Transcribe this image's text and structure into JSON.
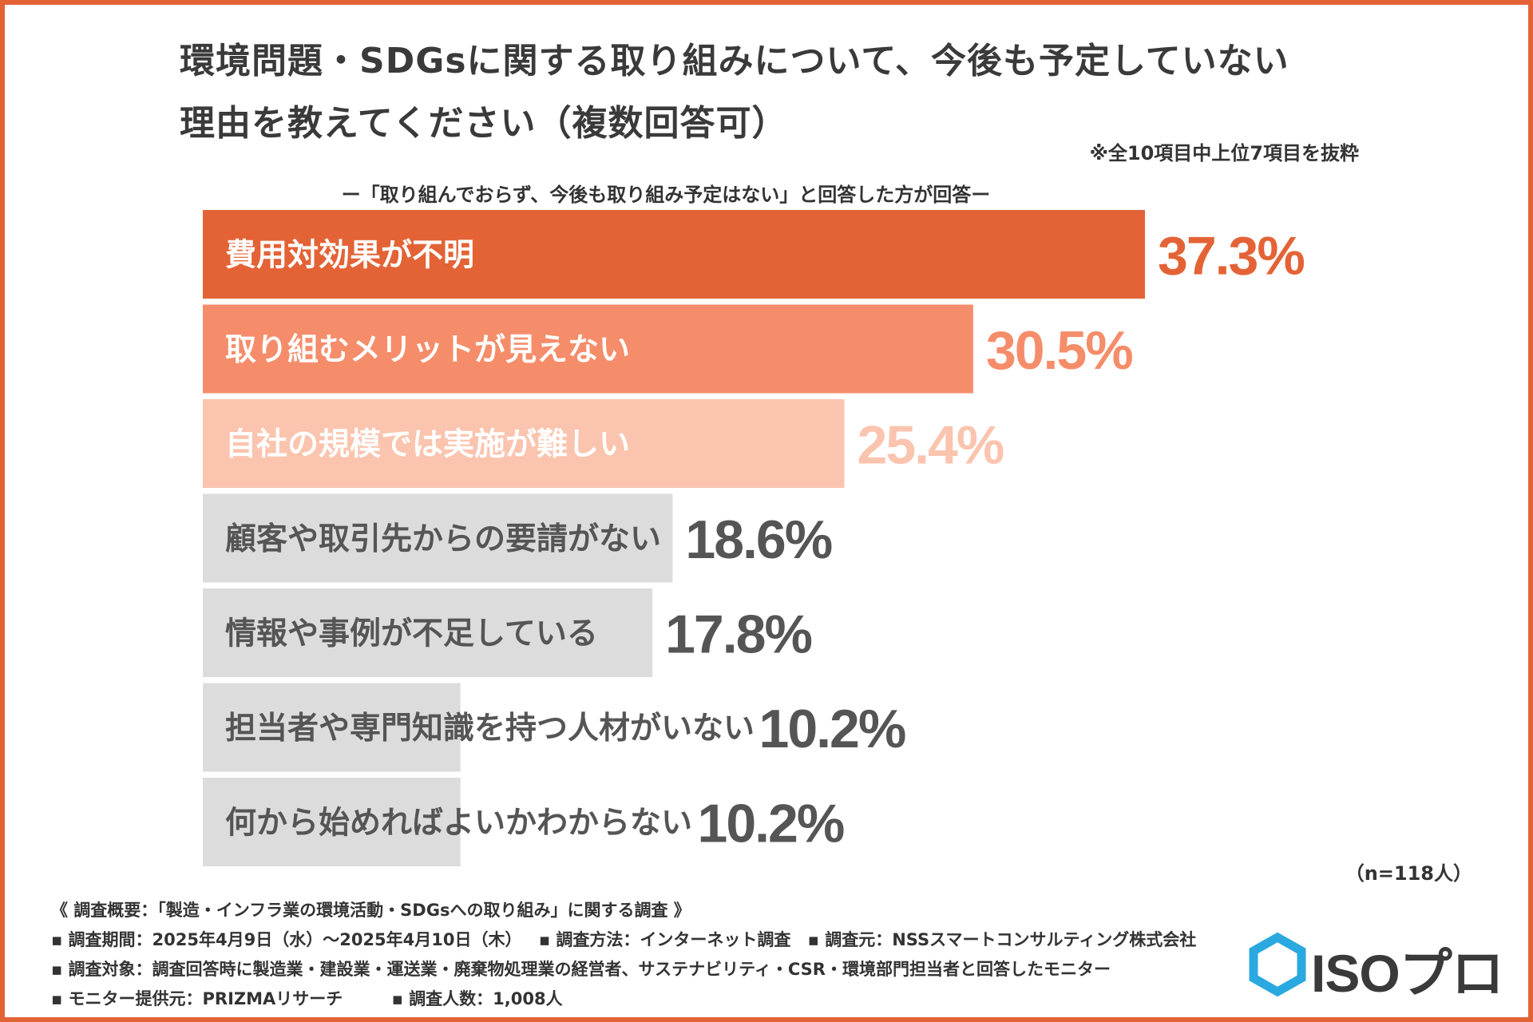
{
  "title_line1": "環境問題・SDGsに関する取り組みについて、今後も予定していない",
  "title_line2": "理由を教えてください（複数回答可）",
  "note": "※全10項目中上位7項目を抜粋",
  "subtitle": "ー「取り組んでおらず、今後も取り組み予定はない」と回答した方が回答ー",
  "n_label": "（n=118人）",
  "chart_data": {
    "type": "bar",
    "orientation": "horizontal",
    "categories": [
      "費用対効果が不明",
      "取り組むメリットが見えない",
      "自社の規模では実施が難しい",
      "顧客や取引先からの要請がない",
      "情報や事例が不足している",
      "担当者や専門知識を持つ人材がいない",
      "何から始めればよいかわからない"
    ],
    "values": [
      37.3,
      30.5,
      25.4,
      18.6,
      17.8,
      10.2,
      10.2
    ],
    "value_labels": [
      "37.3%",
      "30.5%",
      "25.4%",
      "18.6%",
      "17.8%",
      "10.2%",
      "10.2%"
    ],
    "bar_colors": [
      "#e36336",
      "#f58d6a",
      "#fbc4ae",
      "#dcdcdc",
      "#dcdcdc",
      "#dcdcdc",
      "#dcdcdc"
    ],
    "label_colors": [
      "#ffffff",
      "#ffffff",
      "#ffffff",
      "#555555",
      "#555555",
      "#555555",
      "#555555"
    ],
    "value_colors": [
      "#e36336",
      "#f58d6a",
      "#fbc4ae",
      "#555555",
      "#555555",
      "#555555",
      "#555555"
    ],
    "unit": "%",
    "xlim": [
      0,
      37.3
    ]
  },
  "footer": {
    "summary": "《 調査概要：「製造・インフラ業の環境活動・SDGsへの取り組み」に関する調査 》",
    "period": "▪ 調査期間：2025年4月9日（水）〜2025年4月10日（木）",
    "method": "▪ 調査方法：インターネット調査",
    "source": "▪ 調査元：NSSスマートコンサルティング株式会社",
    "target": "▪ 調査対象：調査回答時に製造業・建設業・運送業・廃棄物処理業の経営者、サステナビリティ・CSR・環境部門担当者と回答したモニター",
    "monitor": "▪ モニター提供元：PRIZMAリサーチ",
    "respondents": "▪ 調査人数：1,008人"
  },
  "logo": {
    "text": "ISOプロ",
    "color": "#2aa9e0"
  }
}
